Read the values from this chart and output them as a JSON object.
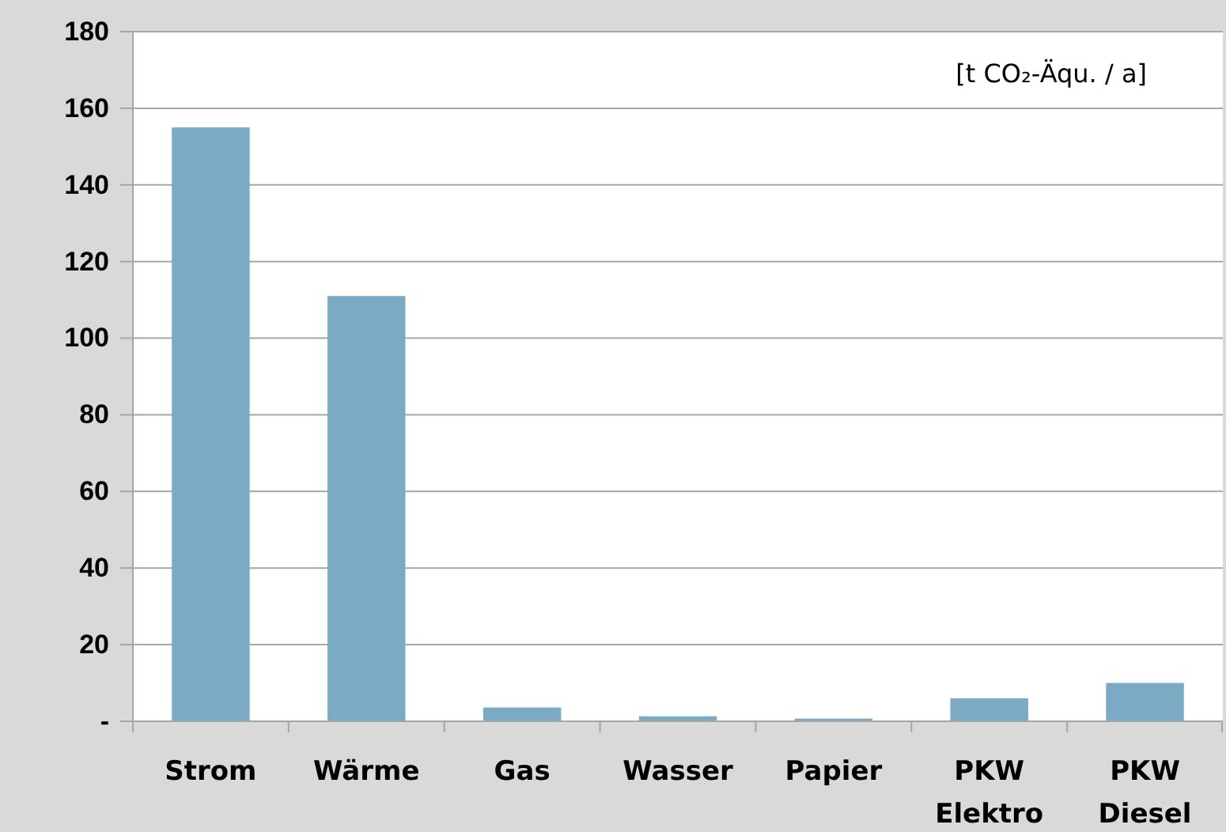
{
  "chart_data": {
    "type": "bar",
    "categories": [
      "Strom",
      "Wärme",
      "Gas",
      "Wasser",
      "Papier",
      "PKW Elektro",
      "PKW Diesel"
    ],
    "values": [
      155,
      111,
      3.6,
      1.3,
      0.7,
      6,
      10
    ],
    "color": "#7aaac4",
    "ylim": [
      0,
      180
    ],
    "yticks": [
      {
        "value": 0,
        "label": "-"
      },
      20,
      40,
      60,
      80,
      100,
      120,
      140,
      160,
      180
    ],
    "grid": "y",
    "annotations": [
      "[t CO₂-Äqu. / a]"
    ]
  }
}
